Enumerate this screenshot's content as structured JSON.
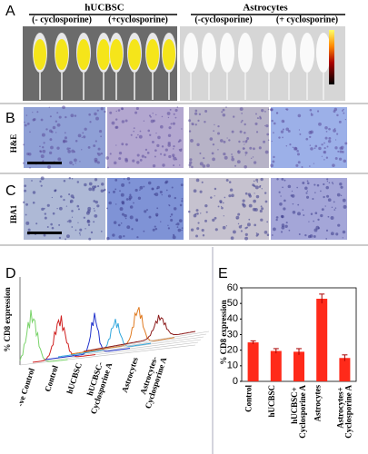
{
  "panels": {
    "A": {
      "label": "A",
      "groups": [
        {
          "title": "hUCBSC",
          "conditions": [
            "(- cyclosporine)",
            "(+cyclosporine)"
          ]
        },
        {
          "title": "Astrocytes",
          "conditions": [
            "(-cyclosporine)",
            "(+ cyclosporine)"
          ]
        }
      ]
    },
    "B": {
      "label": "B",
      "stain": "H&E"
    },
    "C": {
      "label": "C",
      "stain": "IBA1"
    },
    "D": {
      "label": "D",
      "y_label": "% CD8 expression",
      "labels": [
        "-ve Control",
        "Control",
        "hUCBSC",
        "hUCBSC- Cyclosporine A",
        "Astrocytes",
        "Astrocytes- Cyclosporine A"
      ]
    },
    "E": {
      "label": "E"
    }
  },
  "chart_data": {
    "type": "bar",
    "y_label": "% CD8 expression",
    "categories": [
      "Control",
      "hUCBSC",
      "hUCBSC+ Cyclosporine A",
      "Astrocytes",
      "Astrocytes+ Cyclosporine A"
    ],
    "values": [
      25,
      19.5,
      19,
      53,
      15
    ],
    "errors": [
      1,
      1.5,
      2,
      3,
      2
    ],
    "color": "#ff2a1a",
    "ylim": [
      0,
      60
    ],
    "yticks": [
      0,
      10,
      20,
      30,
      40,
      50,
      60
    ]
  }
}
